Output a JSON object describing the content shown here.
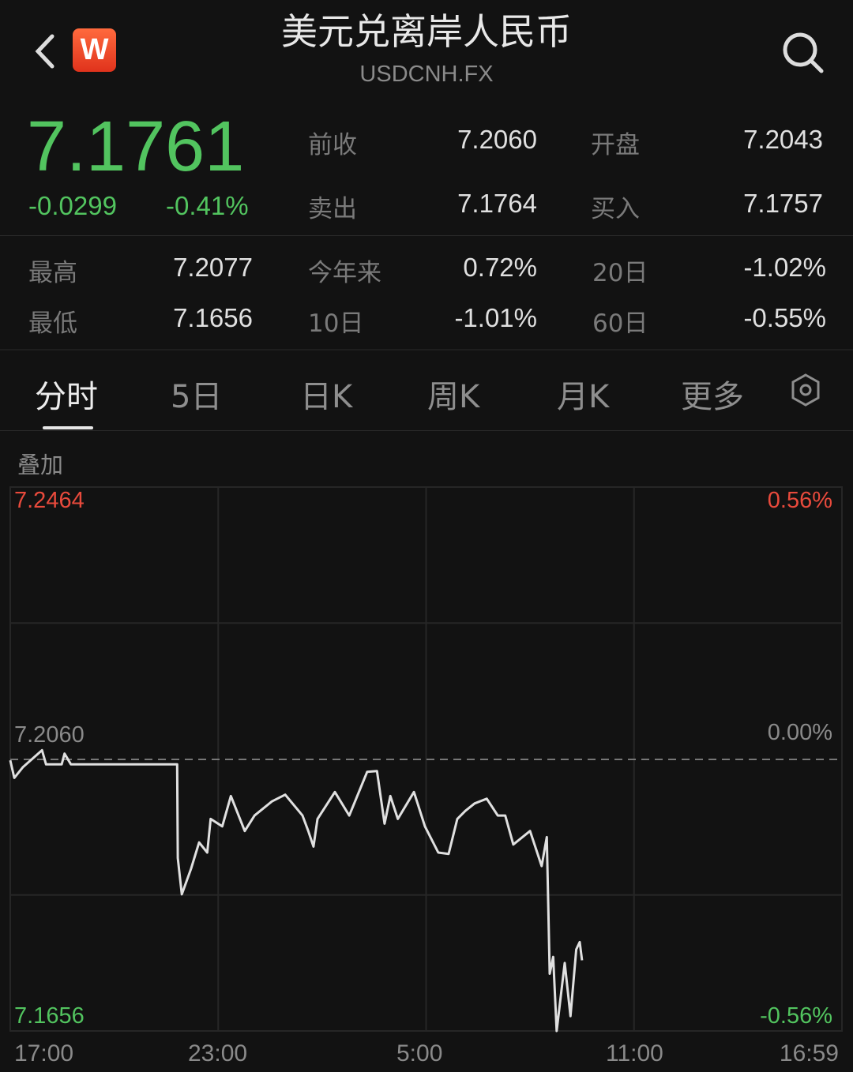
{
  "header": {
    "title": "美元兑离岸人民币",
    "code": "USDCNH.FX",
    "logo_text": "W",
    "back_icon": "chevron-left-icon",
    "search_icon": "search-icon"
  },
  "quote": {
    "price": "7.1761",
    "change": "-0.0299",
    "change_pct": "-0.41%"
  },
  "stats": [
    {
      "label": "前收",
      "value": "7.2060"
    },
    {
      "label": "开盘",
      "value": "7.2043"
    },
    {
      "label": "卖出",
      "value": "7.1764"
    },
    {
      "label": "买入",
      "value": "7.1757"
    },
    {
      "label": "最高",
      "value": "7.2077"
    },
    {
      "label": "今年来",
      "value": "0.72%"
    },
    {
      "label": "20日",
      "value": "-1.02%"
    },
    {
      "label": "最低",
      "value": "7.1656"
    },
    {
      "label": "10日",
      "value": "-1.01%"
    },
    {
      "label": "60日",
      "value": "-0.55%"
    }
  ],
  "tabs": [
    {
      "label": "分时",
      "active": true
    },
    {
      "label": "5日"
    },
    {
      "label": "日K"
    },
    {
      "label": "周K"
    },
    {
      "label": "月K"
    },
    {
      "label": "更多"
    }
  ],
  "settings_icon": "settings-icon",
  "overlay_label": "叠加",
  "colors": {
    "up": "#e84a3c",
    "down": "#52c45f",
    "line": "#e0e0e0",
    "bg": "#121212"
  },
  "chart_data": {
    "type": "line",
    "ylim": [
      7.1656,
      7.2464
    ],
    "y_labels": {
      "top": "7.2464",
      "mid": "7.2060",
      "bottom": "7.1656"
    },
    "pct_labels": {
      "top": "0.56%",
      "mid": "0.00%",
      "bottom": "-0.56%"
    },
    "reference_price": 7.206,
    "x_ticks": [
      "17:00",
      "23:00",
      "5:00",
      "11:00",
      "16:59"
    ],
    "x_range": [
      "17:00",
      "16:59"
    ],
    "points": [
      [
        "17:00",
        7.2058
      ],
      [
        "17:07",
        7.2032
      ],
      [
        "17:22",
        7.2048
      ],
      [
        "17:55",
        7.2073
      ],
      [
        "18:02",
        7.2052
      ],
      [
        "18:29",
        7.2052
      ],
      [
        "18:34",
        7.2068
      ],
      [
        "18:45",
        7.2052
      ],
      [
        "21:49",
        7.2052
      ],
      [
        "21:50",
        7.1913
      ],
      [
        "21:57",
        7.1859
      ],
      [
        "22:13",
        7.1897
      ],
      [
        "22:27",
        7.1936
      ],
      [
        "22:41",
        7.1921
      ],
      [
        "22:47",
        7.1971
      ],
      [
        "23:07",
        7.196
      ],
      [
        "23:22",
        7.2005
      ],
      [
        "23:46",
        7.1953
      ],
      [
        "00:03",
        7.1976
      ],
      [
        "00:33",
        7.1997
      ],
      [
        "00:56",
        7.2007
      ],
      [
        "01:26",
        7.1976
      ],
      [
        "01:36",
        7.1953
      ],
      [
        "01:45",
        7.193
      ],
      [
        "01:52",
        7.1971
      ],
      [
        "02:22",
        7.2011
      ],
      [
        "02:47",
        7.1976
      ],
      [
        "03:18",
        7.2041
      ],
      [
        "03:35",
        7.2042
      ],
      [
        "03:48",
        7.1964
      ],
      [
        "03:58",
        7.2005
      ],
      [
        "04:11",
        7.1971
      ],
      [
        "04:39",
        7.2011
      ],
      [
        "04:58",
        7.196
      ],
      [
        "05:21",
        7.1921
      ],
      [
        "05:39",
        7.1919
      ],
      [
        "05:54",
        7.1971
      ],
      [
        "06:08",
        7.1983
      ],
      [
        "06:24",
        7.1994
      ],
      [
        "06:45",
        7.2001
      ],
      [
        "07:04",
        7.1976
      ],
      [
        "07:17",
        7.1976
      ],
      [
        "07:31",
        7.1933
      ],
      [
        "08:00",
        7.1953
      ],
      [
        "08:20",
        7.1901
      ],
      [
        "08:29",
        7.1944
      ],
      [
        "08:34",
        7.1741
      ],
      [
        "08:40",
        7.1766
      ],
      [
        "08:46",
        7.1656
      ],
      [
        "09:00",
        7.1757
      ],
      [
        "09:10",
        7.1678
      ],
      [
        "09:20",
        7.1777
      ],
      [
        "09:26",
        7.1788
      ],
      [
        "09:30",
        7.1761
      ]
    ]
  }
}
